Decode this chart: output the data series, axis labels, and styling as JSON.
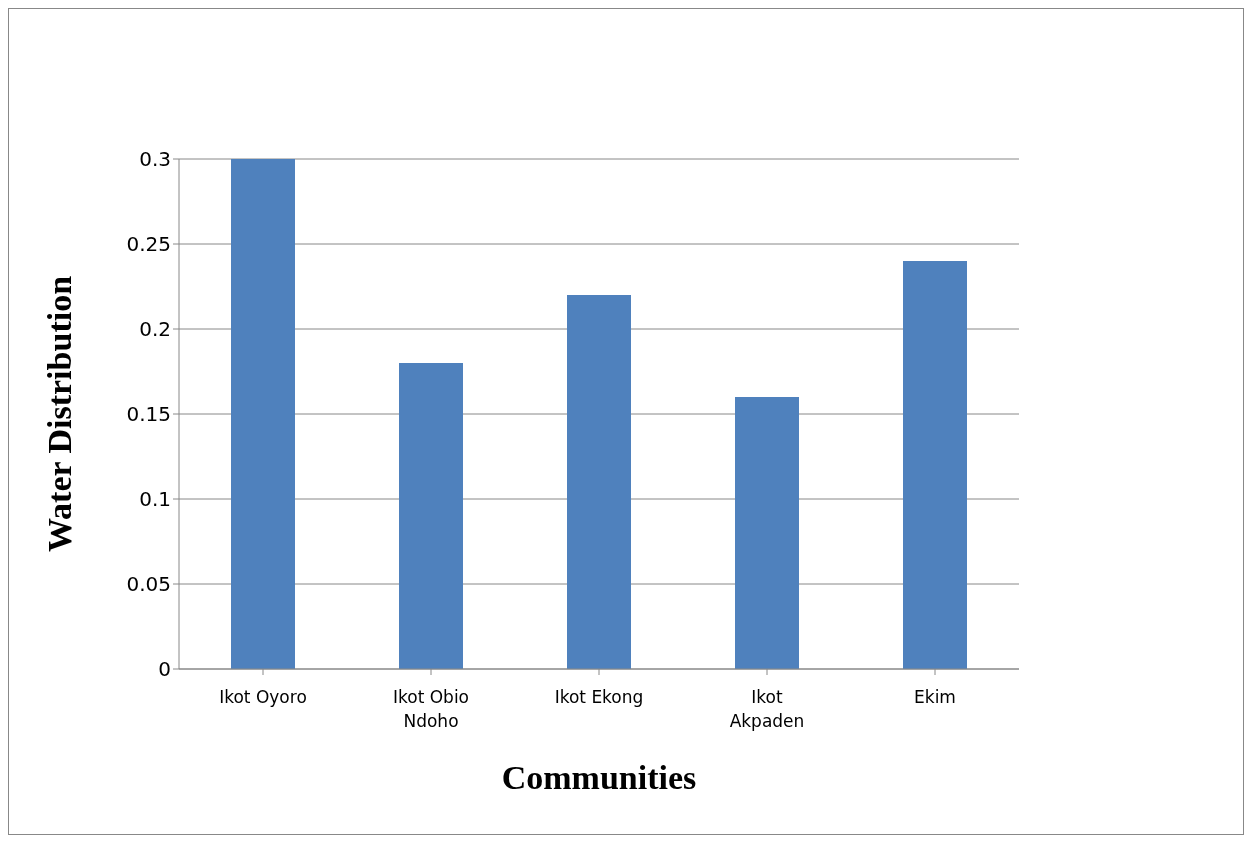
{
  "chart_data": {
    "type": "bar",
    "xlabel": "Communities",
    "ylabel": "Water Distribution",
    "categories": [
      "Ikot Oyoro",
      "Ikot Obio Ndoho",
      "Ikot Ekong",
      "Ikot Akpaden",
      "Ekim"
    ],
    "values": [
      0.3,
      0.18,
      0.22,
      0.16,
      0.24
    ],
    "color": "#4f81bd",
    "ylim": [
      0,
      0.3
    ],
    "yticks": [
      0,
      0.05,
      0.1,
      0.15,
      0.2,
      0.25,
      0.3
    ],
    "grid": "y"
  }
}
